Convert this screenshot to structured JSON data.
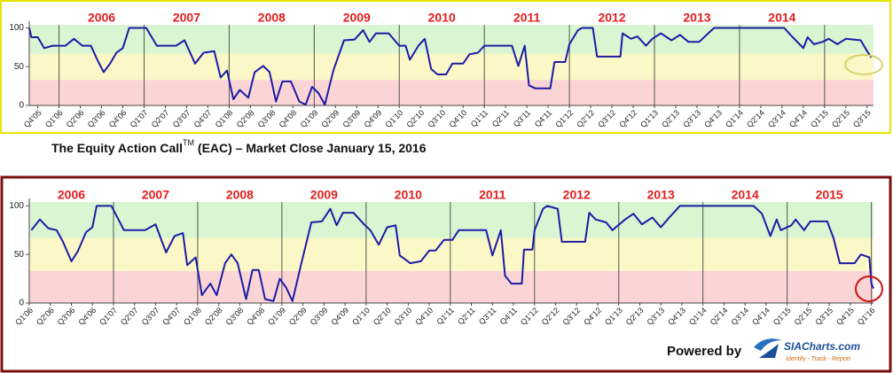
{
  "chart_data": [
    {
      "type": "line",
      "color": "#1c1ca6",
      "year_color": "#e31e1e",
      "xlim": [
        -0.4,
        39.3
      ],
      "ylim": [
        0,
        104
      ],
      "yticks": [
        0,
        50,
        100
      ],
      "bands": [
        {
          "from": 0,
          "to": 33,
          "color": "#fbd5d5"
        },
        {
          "from": 33,
          "to": 67,
          "color": "#fbf7c6"
        },
        {
          "from": 67,
          "to": 104,
          "color": "#d9f5d2"
        }
      ],
      "year_lines": [
        1,
        5,
        9,
        13,
        17,
        21,
        25,
        29,
        33,
        37
      ],
      "year_labels": [
        "2006",
        "2007",
        "2008",
        "2009",
        "2010",
        "2011",
        "2012",
        "2013",
        "2014"
      ],
      "xticks": [
        {
          "value": 0,
          "label": "Q4'05"
        },
        {
          "value": 1,
          "label": "Q1'06"
        },
        {
          "value": 2,
          "label": "Q2'06"
        },
        {
          "value": 3,
          "label": "Q3'06"
        },
        {
          "value": 4,
          "label": "Q4'06"
        },
        {
          "value": 5,
          "label": "Q1'07"
        },
        {
          "value": 6,
          "label": "Q2'07"
        },
        {
          "value": 7,
          "label": "Q3'07"
        },
        {
          "value": 8,
          "label": "Q4'07"
        },
        {
          "value": 9,
          "label": "Q1'08"
        },
        {
          "value": 10,
          "label": "Q2'08"
        },
        {
          "value": 11,
          "label": "Q3'08"
        },
        {
          "value": 12,
          "label": "Q4'08"
        },
        {
          "value": 13,
          "label": "Q1'09"
        },
        {
          "value": 14,
          "label": "Q2'09"
        },
        {
          "value": 15,
          "label": "Q3'09"
        },
        {
          "value": 16,
          "label": "Q4'09"
        },
        {
          "value": 17,
          "label": "Q1'10"
        },
        {
          "value": 18,
          "label": "Q2'10"
        },
        {
          "value": 19,
          "label": "Q3'10"
        },
        {
          "value": 20,
          "label": "Q4'10"
        },
        {
          "value": 21,
          "label": "Q1'11"
        },
        {
          "value": 22,
          "label": "Q2'11"
        },
        {
          "value": 23,
          "label": "Q3'11"
        },
        {
          "value": 24,
          "label": "Q4'11"
        },
        {
          "value": 25,
          "label": "Q1'12"
        },
        {
          "value": 26,
          "label": "Q2'12"
        },
        {
          "value": 27,
          "label": "Q3'12"
        },
        {
          "value": 28,
          "label": "Q4'12"
        },
        {
          "value": 29,
          "label": "Q1'13"
        },
        {
          "value": 30,
          "label": "Q2'13"
        },
        {
          "value": 31,
          "label": "Q3'13"
        },
        {
          "value": 32,
          "label": "Q4'13"
        },
        {
          "value": 33,
          "label": "Q1'14"
        },
        {
          "value": 34,
          "label": "Q2'14"
        },
        {
          "value": 35,
          "label": "Q3'14"
        },
        {
          "value": 36,
          "label": "Q4'14"
        },
        {
          "value": 37,
          "label": "Q1'15"
        },
        {
          "value": 38,
          "label": "Q2'15"
        },
        {
          "value": 39,
          "label": "Q3'15"
        }
      ],
      "x": [
        -0.4,
        -0.3,
        0.0,
        0.3,
        0.7,
        1.3,
        1.7,
        2.1,
        2.5,
        2.8,
        3.1,
        3.4,
        3.7,
        4.0,
        4.3,
        5.1,
        5.6,
        6.5,
        6.9,
        7.4,
        7.8,
        8.3,
        8.6,
        8.9,
        9.2,
        9.5,
        9.9,
        10.2,
        10.6,
        10.9,
        11.2,
        11.5,
        11.9,
        12.3,
        12.6,
        12.9,
        13.2,
        13.5,
        13.9,
        14.4,
        14.9,
        15.3,
        15.6,
        15.9,
        16.5,
        17.0,
        17.3,
        17.5,
        17.9,
        18.2,
        18.5,
        18.8,
        19.2,
        19.5,
        20.0,
        20.3,
        20.7,
        21.0,
        22.3,
        22.6,
        22.9,
        23.1,
        23.4,
        24.1,
        24.3,
        24.8,
        25.0,
        25.4,
        25.6,
        26.1,
        26.3,
        27.4,
        27.5,
        27.9,
        28.2,
        28.6,
        28.9,
        29.3,
        29.8,
        30.2,
        30.6,
        31.1,
        31.8,
        35.1,
        35.5,
        36.0,
        36.2,
        36.5,
        36.9,
        37.2,
        37.6,
        38.0,
        38.7,
        39.0,
        39.2
      ],
      "values": [
        100,
        88,
        88,
        74,
        77,
        77,
        86,
        77,
        77,
        59,
        43,
        54,
        68,
        74,
        100,
        100,
        77,
        77,
        84,
        54,
        68,
        70,
        36,
        45,
        8,
        20,
        10,
        43,
        51,
        43,
        5,
        31,
        31,
        5,
        1,
        24,
        16,
        1,
        45,
        84,
        85,
        97,
        82,
        93,
        93,
        77,
        77,
        59,
        77,
        86,
        47,
        40,
        40,
        54,
        54,
        66,
        68,
        77,
        77,
        51,
        77,
        26,
        22,
        22,
        56,
        56,
        79,
        97,
        100,
        100,
        63,
        63,
        93,
        86,
        89,
        77,
        86,
        93,
        84,
        91,
        82,
        82,
        100,
        100,
        88,
        74,
        88,
        79,
        82,
        86,
        79,
        86,
        84,
        70,
        62
      ]
    },
    {
      "type": "line",
      "color": "#1c1ca6",
      "year_color": "#e31e1e",
      "xlim": [
        0,
        40.1
      ],
      "ylim": [
        0,
        104
      ],
      "yticks": [
        0,
        50,
        100
      ],
      "bands": [
        {
          "from": 0,
          "to": 33,
          "color": "#fbd5d5"
        },
        {
          "from": 33,
          "to": 67,
          "color": "#fbf7c6"
        },
        {
          "from": 67,
          "to": 104,
          "color": "#d9f5d2"
        }
      ],
      "year_lines": [
        0,
        4,
        8,
        12,
        16,
        20,
        24,
        28,
        32,
        36,
        40
      ],
      "year_labels": [
        "2006",
        "2007",
        "2008",
        "2009",
        "2010",
        "2011",
        "2012",
        "2013",
        "2014",
        "2015"
      ],
      "xticks": [
        {
          "value": 0,
          "label": "Q1'06"
        },
        {
          "value": 1,
          "label": "Q2'06"
        },
        {
          "value": 2,
          "label": "Q3'06"
        },
        {
          "value": 3,
          "label": "Q4'06"
        },
        {
          "value": 4,
          "label": "Q1'07"
        },
        {
          "value": 5,
          "label": "Q2'07"
        },
        {
          "value": 6,
          "label": "Q3'07"
        },
        {
          "value": 7,
          "label": "Q4'07"
        },
        {
          "value": 8,
          "label": "Q1'08"
        },
        {
          "value": 9,
          "label": "Q2'08"
        },
        {
          "value": 10,
          "label": "Q3'08"
        },
        {
          "value": 11,
          "label": "Q4'08"
        },
        {
          "value": 12,
          "label": "Q1'09"
        },
        {
          "value": 13,
          "label": "Q2'09"
        },
        {
          "value": 14,
          "label": "Q3'09"
        },
        {
          "value": 15,
          "label": "Q4'09"
        },
        {
          "value": 16,
          "label": "Q1'10"
        },
        {
          "value": 17,
          "label": "Q2'10"
        },
        {
          "value": 18,
          "label": "Q3'10"
        },
        {
          "value": 19,
          "label": "Q4'10"
        },
        {
          "value": 20,
          "label": "Q1'11"
        },
        {
          "value": 21,
          "label": "Q2'11"
        },
        {
          "value": 22,
          "label": "Q3'11"
        },
        {
          "value": 23,
          "label": "Q4'11"
        },
        {
          "value": 24,
          "label": "Q1'12"
        },
        {
          "value": 25,
          "label": "Q2'12"
        },
        {
          "value": 26,
          "label": "Q3'12"
        },
        {
          "value": 27,
          "label": "Q4'12"
        },
        {
          "value": 28,
          "label": "Q1'13"
        },
        {
          "value": 29,
          "label": "Q2'13"
        },
        {
          "value": 30,
          "label": "Q3'13"
        },
        {
          "value": 31,
          "label": "Q4'13"
        },
        {
          "value": 32,
          "label": "Q1'14"
        },
        {
          "value": 33,
          "label": "Q2'14"
        },
        {
          "value": 34,
          "label": "Q3'14"
        },
        {
          "value": 35,
          "label": "Q4'14"
        },
        {
          "value": 36,
          "label": "Q1'15"
        },
        {
          "value": 37,
          "label": "Q2'15"
        },
        {
          "value": 38,
          "label": "Q3'15"
        },
        {
          "value": 39,
          "label": "Q4'15"
        },
        {
          "value": 40,
          "label": "Q1'16"
        }
      ],
      "x": [
        0.1,
        0.5,
        0.9,
        1.3,
        1.6,
        2.0,
        2.3,
        2.7,
        3.0,
        3.2,
        3.9,
        4.5,
        5.5,
        6.0,
        6.5,
        6.9,
        7.3,
        7.5,
        7.9,
        8.2,
        8.6,
        8.9,
        9.3,
        9.6,
        9.9,
        10.3,
        10.6,
        10.9,
        11.2,
        11.6,
        11.9,
        12.2,
        12.5,
        12.9,
        13.4,
        13.9,
        14.3,
        14.6,
        14.9,
        15.4,
        15.9,
        16.2,
        16.6,
        17.0,
        17.4,
        17.6,
        18.1,
        18.6,
        19.0,
        19.3,
        19.7,
        20.1,
        20.4,
        21.7,
        22.0,
        22.4,
        22.6,
        22.9,
        23.4,
        23.5,
        23.9,
        24.0,
        24.4,
        24.6,
        25.1,
        25.3,
        26.4,
        26.6,
        26.9,
        27.4,
        27.7,
        28.3,
        28.7,
        29.1,
        29.6,
        30.0,
        30.4,
        30.9,
        34.4,
        34.8,
        35.2,
        35.5,
        35.7,
        36.2,
        36.4,
        36.8,
        37.1,
        37.9,
        38.2,
        38.5,
        39.2,
        39.5,
        39.9,
        40.0,
        40.1
      ],
      "values": [
        75,
        86,
        77,
        75,
        63,
        43,
        53,
        73,
        78,
        100,
        100,
        75,
        75,
        81,
        52,
        69,
        72,
        39,
        47,
        8,
        20,
        8,
        41,
        50,
        41,
        4,
        34,
        34,
        4,
        2,
        25,
        16,
        2,
        39,
        83,
        84,
        97,
        80,
        93,
        93,
        81,
        75,
        60,
        78,
        80,
        49,
        41,
        43,
        54,
        54,
        65,
        65,
        75,
        75,
        49,
        75,
        28,
        20,
        20,
        55,
        55,
        75,
        97,
        100,
        97,
        63,
        63,
        93,
        86,
        83,
        75,
        86,
        92,
        81,
        88,
        78,
        88,
        100,
        100,
        92,
        69,
        86,
        75,
        80,
        86,
        75,
        84,
        84,
        67,
        41,
        41,
        50,
        47,
        20,
        15
      ]
    }
  ],
  "caption": {
    "text": "The Equity Action Call",
    "superscript": "TM",
    "rest": " (EAC) – Market Close January 15, 2016"
  },
  "footer": {
    "powered_by": "Powered by",
    "logo_name": "SIACharts.com",
    "logo_tagline": "Identify - Track - Report"
  }
}
